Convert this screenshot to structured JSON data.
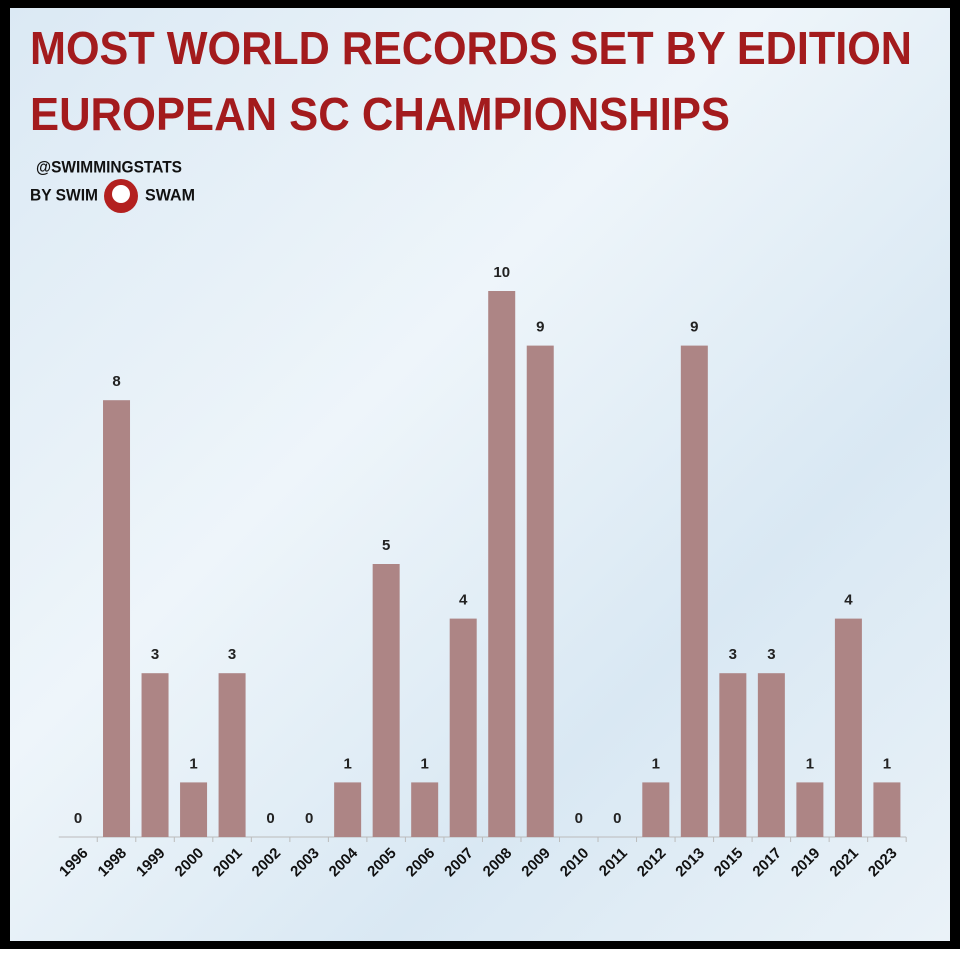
{
  "chart_data": {
    "type": "bar",
    "title": [
      "MOST WORLD RECORDS SET BY EDITION",
      "EUROPEAN SC CHAMPIONSHIPS"
    ],
    "credit": [
      "@SWIMMINGSTATS",
      "BY SWIM",
      "SWAM"
    ],
    "categories": [
      "1996",
      "1998",
      "1999",
      "2000",
      "2001",
      "2002",
      "2003",
      "2004",
      "2005",
      "2006",
      "2007",
      "2008",
      "2009",
      "2010",
      "2011",
      "2012",
      "2013",
      "2015",
      "2017",
      "2019",
      "2021",
      "2023"
    ],
    "values": [
      0,
      8,
      3,
      1,
      3,
      0,
      0,
      1,
      5,
      1,
      4,
      10,
      9,
      0,
      0,
      1,
      9,
      3,
      3,
      1,
      4,
      1
    ],
    "color": "#ad8585",
    "ylim": [
      0,
      10
    ]
  }
}
